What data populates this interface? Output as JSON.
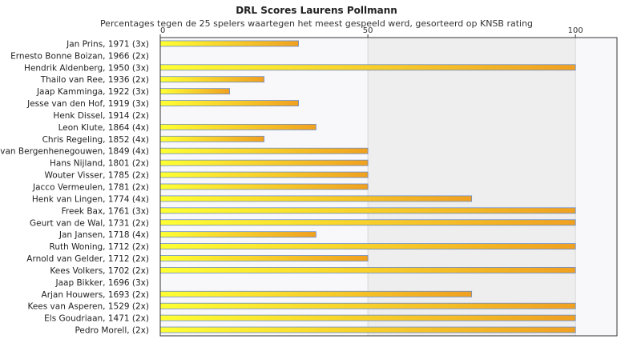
{
  "chart_data": {
    "type": "bar",
    "orientation": "horizontal",
    "title": "DRL Scores Laurens Pollmann",
    "subtitle": "Percentages tegen de 25 spelers waartegen het meest gespeeld werd, gesorteerd op KNSB rating",
    "xlabel": "",
    "ylabel": "",
    "xlim": [
      0,
      110
    ],
    "xticks": [
      0,
      50,
      100
    ],
    "grid": true,
    "legend": "none",
    "colors": {
      "bar_left": "#ffff33",
      "bar_right": "#f0a020",
      "bar_edge": "#6a8cc8",
      "band_light": "#f8f8fb",
      "band_dark": "#eeeeee",
      "axis": "#333333"
    },
    "categories": [
      "Jan Prins, 1971 (3x)",
      "Ernesto Bonne Boizan, 1966 (2x)",
      "Hendrik Aldenberg, 1950 (3x)",
      "Thailo van Ree, 1936 (2x)",
      "Jaap Kamminga, 1922 (3x)",
      "Jesse van den Hof, 1919 (3x)",
      "Henk Dissel, 1914 (2x)",
      "Leon Klute, 1864 (4x)",
      "Chris Regeling, 1852 (4x)",
      "van Bergenhenegouwen, 1849 (4x)",
      "Hans Nijland, 1801 (2x)",
      "Wouter Visser, 1785 (2x)",
      "Jacco Vermeulen, 1781 (2x)",
      "Henk van Lingen, 1774 (4x)",
      "Freek Bax, 1761 (3x)",
      "Geurt van de Wal, 1731 (2x)",
      "Jan Jansen, 1718 (4x)",
      "Ruth Woning, 1712 (2x)",
      "Arnold van Gelder, 1712 (2x)",
      "Kees Volkers, 1702 (2x)",
      "Jaap Bikker, 1696 (3x)",
      "Arjan Houwers, 1693 (2x)",
      "Kees van Asperen, 1529 (2x)",
      "Els Goudriaan, 1471 (2x)",
      "Pedro Morell,  (2x)"
    ],
    "values": [
      33.3,
      0,
      100,
      25,
      16.7,
      33.3,
      0,
      37.5,
      25,
      50,
      50,
      50,
      50,
      75,
      100,
      100,
      37.5,
      100,
      50,
      100,
      0,
      75,
      100,
      100,
      100
    ]
  }
}
